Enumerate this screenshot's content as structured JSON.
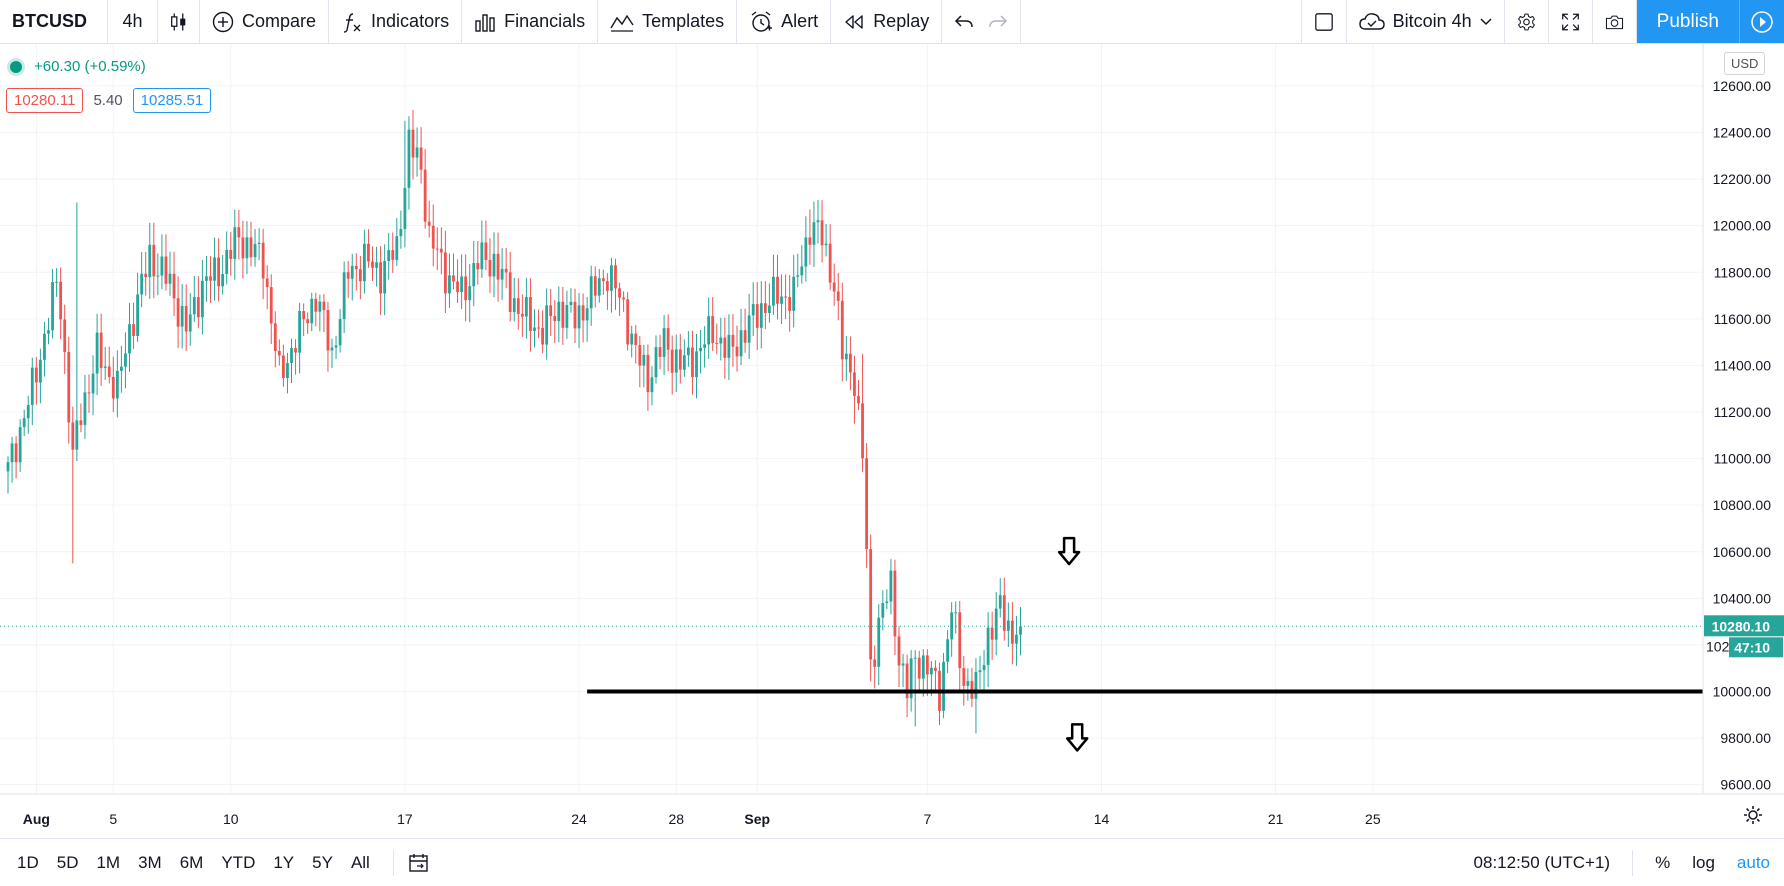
{
  "toolbar": {
    "symbol": "BTCUSD",
    "interval": "4h",
    "compare_label": "Compare",
    "indicators_label": "Indicators",
    "financials_label": "Financials",
    "templates_label": "Templates",
    "alert_label": "Alert",
    "replay_label": "Replay",
    "layout_name": "Bitcoin 4h",
    "publish_label": "Publish"
  },
  "legend": {
    "change": "+60.30 (+0.59%)",
    "bid": "10280.11",
    "spread": "5.40",
    "ask": "10285.51"
  },
  "currency": "USD",
  "price_scale": {
    "current_price": "10280.10",
    "countdown": "47:10",
    "partial_label": "102"
  },
  "bottom": {
    "ranges": [
      "1D",
      "5D",
      "1M",
      "3M",
      "6M",
      "YTD",
      "1Y",
      "5Y",
      "All"
    ],
    "clock": "08:12:50 (UTC+1)",
    "percent": "%",
    "log": "log",
    "auto": "auto"
  },
  "colors": {
    "up": "#26a69a",
    "down": "#ef5350",
    "accent": "#2196f3"
  },
  "chart_data": {
    "type": "candlestick",
    "symbol": "BTCUSD",
    "interval": "4h",
    "y_ticks": [
      12600,
      12400,
      12200,
      12000,
      11800,
      11600,
      11400,
      11200,
      11000,
      10800,
      10600,
      10400,
      10200,
      10000,
      9800,
      9600
    ],
    "y_tick_labels": [
      "12600.00",
      "12400.00",
      "12200.00",
      "12000.00",
      "11800.00",
      "11600.00",
      "11400.00",
      "11200.00",
      "11000.00",
      "10800.00",
      "10600.00",
      "10400.00",
      "",
      "10000.00",
      "9800.00",
      "9600.00"
    ],
    "ylim": [
      9560,
      12780
    ],
    "x_ticks": [
      {
        "label": "Aug",
        "i": 7,
        "bold": true
      },
      {
        "label": "5",
        "i": 26
      },
      {
        "label": "10",
        "i": 55
      },
      {
        "label": "17",
        "i": 98
      },
      {
        "label": "24",
        "i": 141
      },
      {
        "label": "28",
        "i": 165
      },
      {
        "label": "Sep",
        "i": 185,
        "bold": true
      },
      {
        "label": "7",
        "i": 227
      },
      {
        "label": "14",
        "i": 270
      },
      {
        "label": "21",
        "i": 313
      },
      {
        "label": "25",
        "i": 337
      }
    ],
    "horizontal_line": {
      "value": 10000,
      "start_i": 143
    },
    "annotations": [
      {
        "type": "arrow-down",
        "i": 262,
        "value": 10590
      },
      {
        "type": "arrow-down",
        "i": 264,
        "value": 9790
      }
    ],
    "key_closes": [
      {
        "i": 0,
        "v": 10950
      },
      {
        "i": 6,
        "v": 11300
      },
      {
        "i": 12,
        "v": 11750
      },
      {
        "i": 13,
        "v": 11650
      },
      {
        "i": 16,
        "v": 11000
      },
      {
        "i": 18,
        "v": 11200
      },
      {
        "i": 22,
        "v": 11450
      },
      {
        "i": 27,
        "v": 11300
      },
      {
        "i": 30,
        "v": 11550
      },
      {
        "i": 35,
        "v": 11870
      },
      {
        "i": 40,
        "v": 11750
      },
      {
        "i": 44,
        "v": 11550
      },
      {
        "i": 48,
        "v": 11750
      },
      {
        "i": 52,
        "v": 11800
      },
      {
        "i": 57,
        "v": 11950
      },
      {
        "i": 63,
        "v": 11850
      },
      {
        "i": 67,
        "v": 11350
      },
      {
        "i": 72,
        "v": 11550
      },
      {
        "i": 76,
        "v": 11700
      },
      {
        "i": 80,
        "v": 11450
      },
      {
        "i": 84,
        "v": 11800
      },
      {
        "i": 88,
        "v": 11850
      },
      {
        "i": 92,
        "v": 11800
      },
      {
        "i": 96,
        "v": 11900
      },
      {
        "i": 99,
        "v": 12350
      },
      {
        "i": 102,
        "v": 12250
      },
      {
        "i": 104,
        "v": 11950
      },
      {
        "i": 108,
        "v": 11800
      },
      {
        "i": 112,
        "v": 11700
      },
      {
        "i": 116,
        "v": 11850
      },
      {
        "i": 120,
        "v": 11850
      },
      {
        "i": 124,
        "v": 11700
      },
      {
        "i": 128,
        "v": 11600
      },
      {
        "i": 132,
        "v": 11550
      },
      {
        "i": 136,
        "v": 11650
      },
      {
        "i": 140,
        "v": 11600
      },
      {
        "i": 144,
        "v": 11700
      },
      {
        "i": 148,
        "v": 11800
      },
      {
        "i": 152,
        "v": 11650
      },
      {
        "i": 155,
        "v": 11450
      },
      {
        "i": 158,
        "v": 11350
      },
      {
        "i": 162,
        "v": 11500
      },
      {
        "i": 166,
        "v": 11400
      },
      {
        "i": 170,
        "v": 11450
      },
      {
        "i": 174,
        "v": 11550
      },
      {
        "i": 178,
        "v": 11450
      },
      {
        "i": 182,
        "v": 11550
      },
      {
        "i": 186,
        "v": 11650
      },
      {
        "i": 190,
        "v": 11700
      },
      {
        "i": 194,
        "v": 11700
      },
      {
        "i": 198,
        "v": 12000
      },
      {
        "i": 201,
        "v": 11950
      },
      {
        "i": 204,
        "v": 11750
      },
      {
        "i": 206,
        "v": 11450
      },
      {
        "i": 209,
        "v": 11350
      },
      {
        "i": 211,
        "v": 11000
      },
      {
        "i": 212,
        "v": 10600
      },
      {
        "i": 213,
        "v": 10100
      },
      {
        "i": 215,
        "v": 10300
      },
      {
        "i": 218,
        "v": 10450
      },
      {
        "i": 220,
        "v": 10150
      },
      {
        "i": 222,
        "v": 10000
      },
      {
        "i": 224,
        "v": 10150
      },
      {
        "i": 227,
        "v": 10100
      },
      {
        "i": 230,
        "v": 10000
      },
      {
        "i": 233,
        "v": 10350
      },
      {
        "i": 236,
        "v": 10050
      },
      {
        "i": 239,
        "v": 10000
      },
      {
        "i": 242,
        "v": 10250
      },
      {
        "i": 245,
        "v": 10350
      },
      {
        "i": 248,
        "v": 10250
      },
      {
        "i": 250,
        "v": 10280
      }
    ]
  }
}
